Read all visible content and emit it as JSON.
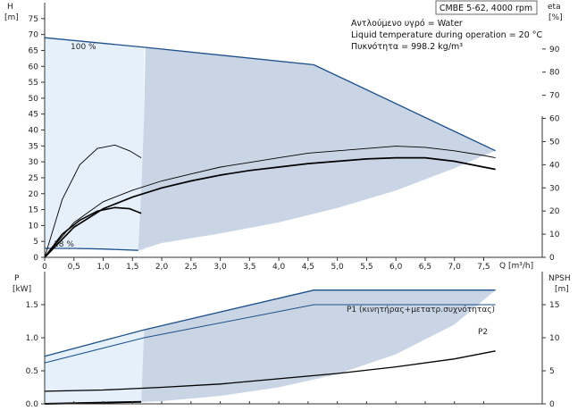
{
  "chart_data": [
    {
      "type": "line",
      "panel": "pump-curve",
      "title_box": "CMBE 5-62, 4000 rpm",
      "info_lines": [
        "Αντλούμενο υγρό = Water",
        "Liquid temperature during operation = 20 °C",
        "Πυκνότητα = 998.2 kg/m³"
      ],
      "ylabel_left": "H\n[m]",
      "ylabel_right": "eta\n[%]",
      "xlabel": "Q [m³/h]",
      "xlim": [
        0,
        8.5
      ],
      "ylim_left": [
        0,
        80
      ],
      "ylim_right": [
        0,
        110
      ],
      "xticks": [
        "0",
        "0,5",
        "1,0",
        "1,5",
        "2,0",
        "2,5",
        "3,0",
        "3,5",
        "4,0",
        "4,5",
        "5,0",
        "5,5",
        "6,0",
        "6,5",
        "7,0",
        "7,5"
      ],
      "yticks_left": [
        "0",
        "5",
        "10",
        "15",
        "20",
        "25",
        "30",
        "35",
        "40",
        "45",
        "50",
        "55",
        "60",
        "65",
        "70",
        "75"
      ],
      "yticks_right": [
        "0",
        "10",
        "20",
        "30",
        "40",
        "50",
        "60",
        "70",
        "80",
        "90"
      ],
      "annotations": [
        "100 %",
        "18 %"
      ],
      "series": [
        {
          "role": "head-max",
          "x": [
            0,
            1.7,
            4.6,
            7.7
          ],
          "y": [
            69,
            66,
            60.5,
            33.5
          ]
        },
        {
          "role": "head-min",
          "x": [
            0,
            0.5,
            1.0,
            1.6
          ],
          "y": [
            2.8,
            2.8,
            2.6,
            2.2
          ]
        },
        {
          "role": "eta-upper",
          "x": [
            0,
            0.5,
            1.0,
            1.5,
            2.0,
            2.5,
            3.0,
            3.5,
            4.0,
            4.5,
            5.0,
            5.5,
            6.0,
            6.5,
            7.0,
            7.5,
            7.7
          ],
          "y": [
            0,
            15,
            24,
            29,
            33,
            36,
            39,
            41,
            43,
            45,
            46,
            47,
            48,
            47.5,
            46,
            44,
            43
          ]
        },
        {
          "role": "eta-lower",
          "x": [
            0,
            0.5,
            1.0,
            1.5,
            2.0,
            2.5,
            3.0,
            3.5,
            4.0,
            4.5,
            5.0,
            5.5,
            6.0,
            6.5,
            7.0,
            7.5,
            7.7
          ],
          "y": [
            0,
            13,
            21,
            26,
            30,
            33,
            35.5,
            37.5,
            39,
            40.5,
            41.5,
            42.5,
            43,
            43,
            41.5,
            39,
            38
          ]
        },
        {
          "role": "eta-small-a",
          "x": [
            0,
            0.3,
            0.6,
            0.9,
            1.2,
            1.45,
            1.65
          ],
          "y": [
            0,
            25,
            40,
            47,
            48.5,
            46,
            43
          ]
        },
        {
          "role": "eta-small-b",
          "x": [
            0,
            0.3,
            0.6,
            0.9,
            1.2,
            1.45,
            1.65
          ],
          "y": [
            0,
            10,
            16,
            20,
            21.5,
            21,
            19
          ]
        }
      ]
    },
    {
      "type": "line",
      "panel": "power-npsh",
      "ylabel_left": "P\n[kW]",
      "ylabel_right": "NPSH\n[m]",
      "xlim": [
        0,
        8.5
      ],
      "ylim_left": [
        0,
        2.0
      ],
      "ylim_right": [
        0,
        20
      ],
      "yticks_left": [
        "0.0",
        "0.5",
        "1.0",
        "1.5"
      ],
      "yticks_right": [
        "0",
        "5",
        "10",
        "15"
      ],
      "series": [
        {
          "name": "P1 (κινητήρας+μετατρ.συχνότητας)",
          "x": [
            0,
            1.7,
            4.6,
            7.7
          ],
          "y": [
            0.72,
            1.12,
            1.72,
            1.72
          ]
        },
        {
          "name": "P2",
          "x": [
            0,
            1.7,
            4.6,
            7.7
          ],
          "y": [
            0.62,
            1.0,
            1.5,
            1.5
          ]
        },
        {
          "role": "npsh",
          "x": [
            0,
            1,
            2,
            3,
            4,
            5,
            6,
            7,
            7.7
          ],
          "y": [
            1.9,
            2.1,
            2.5,
            3.0,
            3.8,
            4.6,
            5.6,
            6.8,
            8.0
          ]
        },
        {
          "role": "p-min",
          "x": [
            0,
            1.65
          ],
          "y": [
            0.0,
            0.03
          ]
        }
      ]
    }
  ],
  "colors": {
    "range_light": "#e6f0fb",
    "range_dark": "#c9d5e4",
    "max_curve": "#1d4f8c",
    "curve": "#000000",
    "axis": "#333333"
  }
}
